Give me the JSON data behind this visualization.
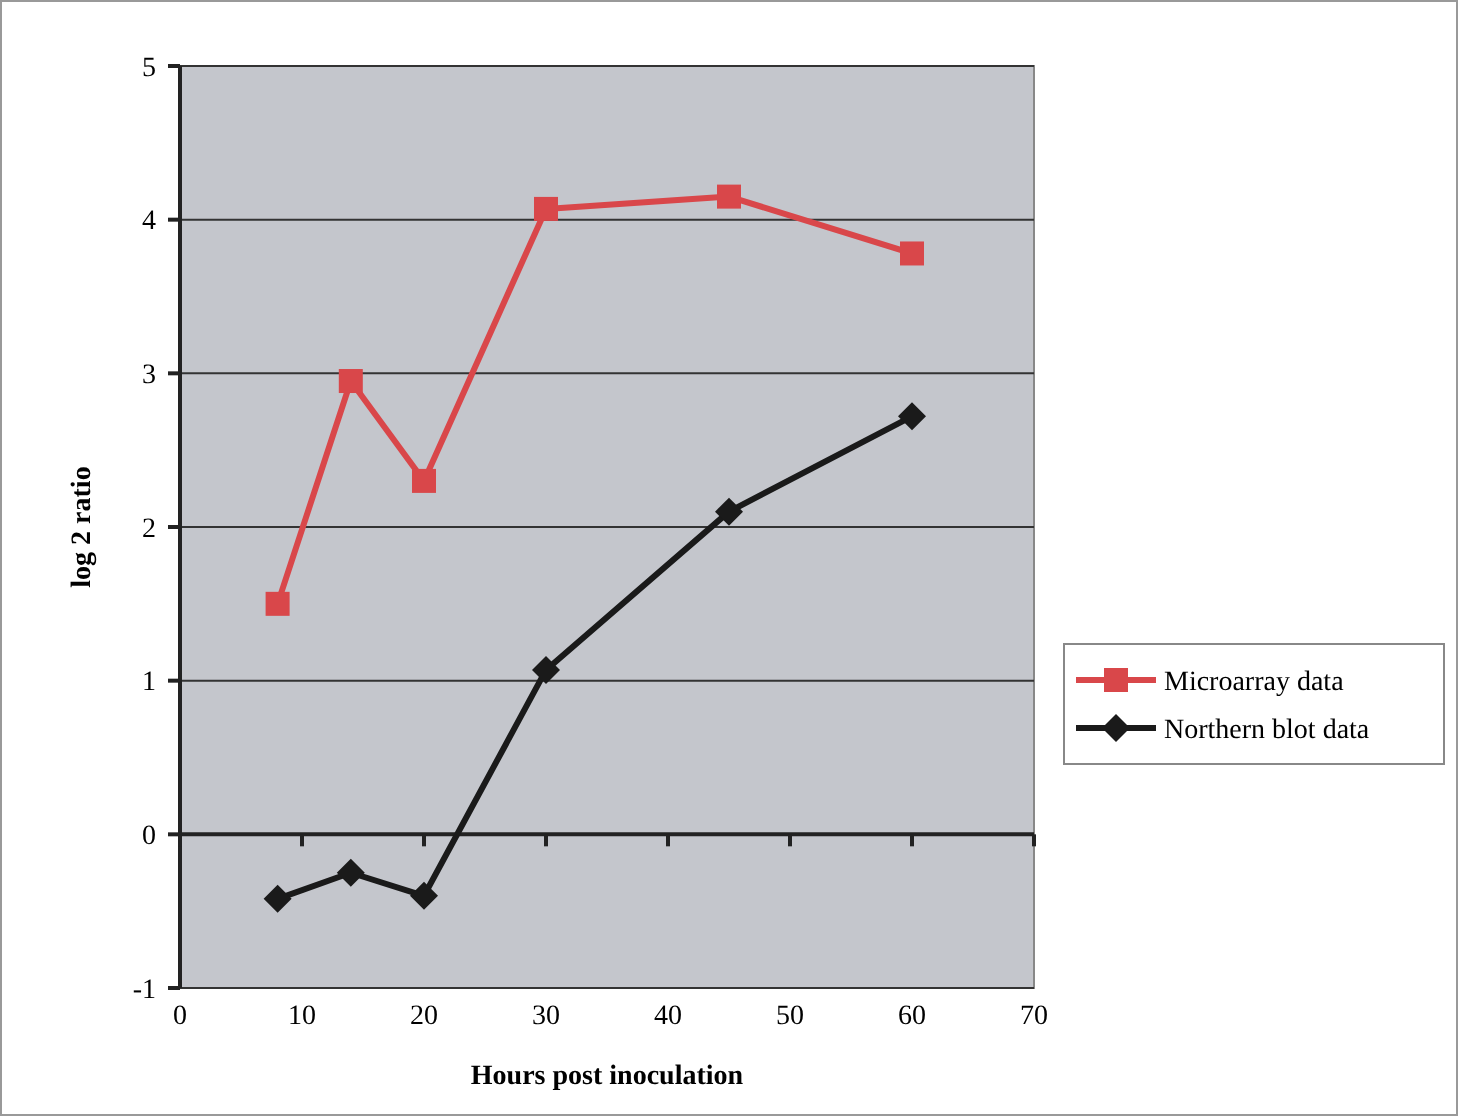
{
  "chart_data": {
    "type": "line",
    "xlabel": "Hours post inoculation",
    "ylabel": "log 2 ratio",
    "xlim": [
      0,
      70
    ],
    "xticks": [
      0,
      10,
      20,
      30,
      40,
      50,
      60,
      70
    ],
    "ylim": [
      -1,
      5
    ],
    "yticks": [
      -1,
      0,
      1,
      2,
      3,
      4,
      5
    ],
    "grid": "y",
    "legend": "right",
    "line_style": "solid",
    "series": [
      {
        "name": "Microarray data",
        "color": "#d9474a",
        "marker": "square",
        "x": [
          8,
          14,
          20,
          30,
          45,
          60
        ],
        "values": [
          1.5,
          2.95,
          2.3,
          4.07,
          4.15,
          3.78
        ]
      },
      {
        "name": "Northern blot data",
        "color": "#1a1a1a",
        "marker": "diamond",
        "x": [
          8,
          14,
          20,
          30,
          45,
          60
        ],
        "values": [
          -0.42,
          -0.25,
          -0.4,
          1.07,
          2.1,
          2.72
        ]
      }
    ]
  }
}
